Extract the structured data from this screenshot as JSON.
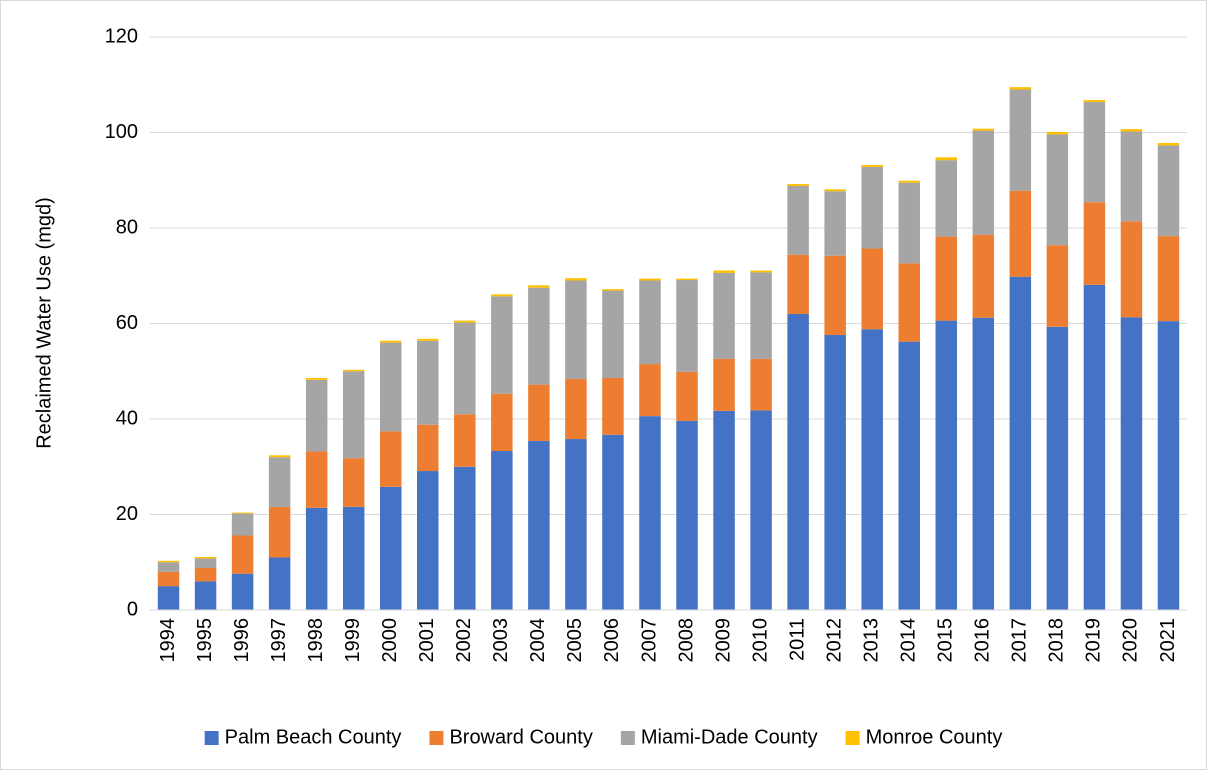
{
  "chart_data": {
    "type": "stacked_bar",
    "y_label": "Reclaimed Water Use (mgd)",
    "categories": [
      "1994",
      "1995",
      "1996",
      "1997",
      "1998",
      "1999",
      "2000",
      "2001",
      "2002",
      "2003",
      "2004",
      "2005",
      "2006",
      "2007",
      "2008",
      "2009",
      "2010",
      "2011",
      "2012",
      "2013",
      "2014",
      "2015",
      "2016",
      "2017",
      "2018",
      "2019",
      "2020",
      "2021"
    ],
    "series": [
      {
        "name": "Palm Beach County",
        "color": "#4472c4",
        "values": [
          5,
          6,
          7.6,
          11,
          21.4,
          21.6,
          25.8,
          29.1,
          30,
          33.3,
          35.4,
          35.8,
          36.7,
          40.6,
          39.6,
          41.7,
          41.8,
          62,
          57.6,
          58.8,
          56.2,
          60.6,
          61.2,
          69.8,
          59.3,
          68.1,
          61.3,
          60.5
        ]
      },
      {
        "name": "Broward County",
        "color": "#ed7d31",
        "values": [
          3,
          2.8,
          8,
          10.6,
          11.8,
          10.2,
          11.6,
          9.7,
          11,
          12,
          11.8,
          12.6,
          11.9,
          10.9,
          10.3,
          10.9,
          10.8,
          12.4,
          16.6,
          16.9,
          16.4,
          17.6,
          17.4,
          18,
          17.1,
          17.3,
          20.1,
          17.8
        ]
      },
      {
        "name": "Miami-Dade County",
        "color": "#a5a5a5",
        "values": [
          2,
          2,
          4.6,
          10.4,
          15,
          18.2,
          18.6,
          17.6,
          19.2,
          20.4,
          20.3,
          20.6,
          18.3,
          17.5,
          19.2,
          18,
          18.1,
          14.4,
          13.5,
          17.1,
          16.9,
          16,
          21.8,
          21.2,
          23.2,
          21,
          18.8,
          19
        ]
      },
      {
        "name": "Monroe County",
        "color": "#ffc000",
        "values": [
          0.3,
          0.3,
          0.2,
          0.4,
          0.4,
          0.3,
          0.4,
          0.4,
          0.4,
          0.4,
          0.5,
          0.5,
          0.3,
          0.4,
          0.3,
          0.5,
          0.4,
          0.4,
          0.4,
          0.4,
          0.4,
          0.6,
          0.4,
          0.5,
          0.5,
          0.4,
          0.5,
          0.5
        ]
      }
    ],
    "ylim": [
      0,
      120
    ],
    "yticks": [
      0,
      20,
      40,
      60,
      80,
      100,
      120
    ],
    "grid": true,
    "legend": "bottom"
  }
}
